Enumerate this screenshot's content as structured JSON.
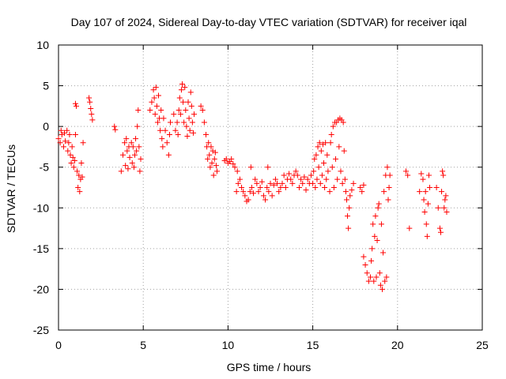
{
  "chart_data": {
    "type": "scatter",
    "title": "Day 107 of 2024, Sidereal Day-to-day VTEC variation (SDTVAR) for receiver iqal",
    "xlabel": "GPS time / hours",
    "ylabel": "SDTVAR / TECUs",
    "xlim": [
      0,
      25
    ],
    "ylim": [
      -25,
      10
    ],
    "xticks": [
      "0",
      "5",
      "10",
      "15",
      "20",
      "25"
    ],
    "yticks": [
      "10",
      "5",
      "0",
      "-5",
      "-10",
      "-15",
      "-20",
      "-25"
    ],
    "grid": true,
    "marker": "+",
    "color": "#ff0000",
    "series": [
      {
        "name": "SDTVAR",
        "points": [
          [
            0.0,
            -1.5
          ],
          [
            0.1,
            -2.0
          ],
          [
            0.15,
            -0.5
          ],
          [
            0.2,
            -1.0
          ],
          [
            0.3,
            -2.5
          ],
          [
            0.35,
            -0.8
          ],
          [
            0.4,
            -1.8
          ],
          [
            0.5,
            -0.5
          ],
          [
            0.55,
            -3.0
          ],
          [
            0.6,
            -2.0
          ],
          [
            0.65,
            -1.0
          ],
          [
            0.7,
            -3.5
          ],
          [
            0.75,
            -4.5
          ],
          [
            0.8,
            -2.5
          ],
          [
            0.85,
            -3.8
          ],
          [
            0.9,
            -5.0
          ],
          [
            0.95,
            -4.2
          ],
          [
            1.0,
            -1.0
          ],
          [
            1.0,
            2.8
          ],
          [
            1.05,
            2.5
          ],
          [
            1.1,
            -5.5
          ],
          [
            1.15,
            -7.5
          ],
          [
            1.2,
            -6.0
          ],
          [
            1.25,
            -8.0
          ],
          [
            1.3,
            -6.5
          ],
          [
            1.35,
            -4.5
          ],
          [
            1.4,
            -6.2
          ],
          [
            1.45,
            -2.0
          ],
          [
            1.8,
            3.5
          ],
          [
            1.85,
            3.0
          ],
          [
            1.9,
            2.2
          ],
          [
            1.95,
            1.5
          ],
          [
            2.0,
            0.8
          ],
          [
            3.3,
            0.0
          ],
          [
            3.35,
            -0.4
          ],
          [
            3.7,
            -5.5
          ],
          [
            3.8,
            -3.5
          ],
          [
            3.9,
            -2.0
          ],
          [
            3.95,
            -4.8
          ],
          [
            4.0,
            -1.5
          ],
          [
            4.05,
            -3.0
          ],
          [
            4.1,
            -5.2
          ],
          [
            4.15,
            -2.5
          ],
          [
            4.2,
            -3.8
          ],
          [
            4.3,
            -2.0
          ],
          [
            4.35,
            -4.5
          ],
          [
            4.4,
            -2.5
          ],
          [
            4.45,
            -5.0
          ],
          [
            4.5,
            -3.5
          ],
          [
            4.55,
            -1.5
          ],
          [
            4.6,
            -3.0
          ],
          [
            4.65,
            0.0
          ],
          [
            4.7,
            2.0
          ],
          [
            4.75,
            -2.5
          ],
          [
            4.8,
            -5.5
          ],
          [
            4.85,
            -4.0
          ],
          [
            5.4,
            2.0
          ],
          [
            5.5,
            3.0
          ],
          [
            5.6,
            4.5
          ],
          [
            5.65,
            3.5
          ],
          [
            5.7,
            1.5
          ],
          [
            5.75,
            4.8
          ],
          [
            5.8,
            2.5
          ],
          [
            5.85,
            0.5
          ],
          [
            5.9,
            3.8
          ],
          [
            5.95,
            1.0
          ],
          [
            6.0,
            -0.5
          ],
          [
            6.05,
            2.0
          ],
          [
            6.1,
            -1.5
          ],
          [
            6.15,
            -2.5
          ],
          [
            6.2,
            1.0
          ],
          [
            6.3,
            -0.5
          ],
          [
            6.4,
            -2.0
          ],
          [
            6.5,
            -3.5
          ],
          [
            6.55,
            -1.0
          ],
          [
            6.6,
            0.5
          ],
          [
            6.8,
            1.5
          ],
          [
            6.9,
            -0.5
          ],
          [
            7.0,
            0.5
          ],
          [
            7.05,
            -1.0
          ],
          [
            7.1,
            2.0
          ],
          [
            7.15,
            3.5
          ],
          [
            7.2,
            1.5
          ],
          [
            7.25,
            4.5
          ],
          [
            7.3,
            5.2
          ],
          [
            7.35,
            3.0
          ],
          [
            7.4,
            0.5
          ],
          [
            7.45,
            4.8
          ],
          [
            7.5,
            2.0
          ],
          [
            7.55,
            0.0
          ],
          [
            7.6,
            -1.2
          ],
          [
            7.65,
            3.0
          ],
          [
            7.7,
            1.0
          ],
          [
            7.75,
            -0.5
          ],
          [
            7.8,
            4.2
          ],
          [
            7.85,
            2.5
          ],
          [
            7.9,
            0.5
          ],
          [
            7.95,
            -0.8
          ],
          [
            8.0,
            1.5
          ],
          [
            8.4,
            2.5
          ],
          [
            8.5,
            2.0
          ],
          [
            8.6,
            0.5
          ],
          [
            8.7,
            -1.0
          ],
          [
            8.75,
            -2.5
          ],
          [
            8.8,
            -4.0
          ],
          [
            8.85,
            -2.0
          ],
          [
            8.9,
            -3.5
          ],
          [
            8.95,
            -5.0
          ],
          [
            9.0,
            -2.5
          ],
          [
            9.05,
            -4.5
          ],
          [
            9.1,
            -3.0
          ],
          [
            9.15,
            -6.0
          ],
          [
            9.2,
            -4.0
          ],
          [
            9.25,
            -3.2
          ],
          [
            9.3,
            -4.8
          ],
          [
            9.35,
            -5.5
          ],
          [
            9.8,
            -4.2
          ],
          [
            9.9,
            -4.0
          ],
          [
            10.0,
            -4.5
          ],
          [
            10.1,
            -4.3
          ],
          [
            10.2,
            -4.0
          ],
          [
            10.3,
            -4.6
          ],
          [
            10.4,
            -5.0
          ],
          [
            10.5,
            -8.0
          ],
          [
            10.55,
            -5.5
          ],
          [
            10.6,
            -7.0
          ],
          [
            10.7,
            -6.5
          ],
          [
            10.8,
            -7.5
          ],
          [
            10.9,
            -8.0
          ],
          [
            11.0,
            -8.5
          ],
          [
            11.1,
            -9.2
          ],
          [
            11.2,
            -9.0
          ],
          [
            11.3,
            -8.0
          ],
          [
            11.35,
            -5.0
          ],
          [
            11.4,
            -7.5
          ],
          [
            11.5,
            -8.2
          ],
          [
            11.6,
            -6.5
          ],
          [
            11.7,
            -7.0
          ],
          [
            11.8,
            -8.0
          ],
          [
            11.9,
            -7.5
          ],
          [
            12.0,
            -6.8
          ],
          [
            12.1,
            -8.5
          ],
          [
            12.2,
            -9.0
          ],
          [
            12.3,
            -7.5
          ],
          [
            12.35,
            -5.0
          ],
          [
            12.4,
            -8.0
          ],
          [
            12.5,
            -7.0
          ],
          [
            12.6,
            -8.5
          ],
          [
            12.7,
            -7.2
          ],
          [
            12.8,
            -6.5
          ],
          [
            12.9,
            -7.0
          ],
          [
            13.0,
            -8.0
          ],
          [
            13.1,
            -7.5
          ],
          [
            13.2,
            -7.0
          ],
          [
            13.3,
            -6.0
          ],
          [
            13.4,
            -7.5
          ],
          [
            13.5,
            -6.5
          ],
          [
            13.6,
            -5.8
          ],
          [
            13.7,
            -6.5
          ],
          [
            13.8,
            -7.0
          ],
          [
            13.9,
            -6.0
          ],
          [
            14.0,
            -5.5
          ],
          [
            14.1,
            -6.0
          ],
          [
            14.2,
            -7.5
          ],
          [
            14.3,
            -6.5
          ],
          [
            14.4,
            -7.0
          ],
          [
            14.5,
            -6.2
          ],
          [
            14.6,
            -7.8
          ],
          [
            14.7,
            -6.5
          ],
          [
            14.8,
            -7.0
          ],
          [
            14.9,
            -6.0
          ],
          [
            15.0,
            -7.0
          ],
          [
            15.05,
            -5.5
          ],
          [
            15.1,
            -4.0
          ],
          [
            15.15,
            -7.5
          ],
          [
            15.2,
            -3.5
          ],
          [
            15.25,
            -6.5
          ],
          [
            15.3,
            -2.5
          ],
          [
            15.35,
            -5.0
          ],
          [
            15.4,
            -2.0
          ],
          [
            15.45,
            -7.0
          ],
          [
            15.5,
            -3.0
          ],
          [
            15.55,
            -6.0
          ],
          [
            15.6,
            -2.2
          ],
          [
            15.65,
            -4.5
          ],
          [
            15.7,
            -7.5
          ],
          [
            15.75,
            -2.0
          ],
          [
            15.8,
            -6.5
          ],
          [
            15.85,
            -3.5
          ],
          [
            15.9,
            -5.5
          ],
          [
            16.0,
            -8.0
          ],
          [
            16.05,
            -2.0
          ],
          [
            16.1,
            -1.0
          ],
          [
            16.15,
            -5.0
          ],
          [
            16.2,
            0.0
          ],
          [
            16.25,
            -7.5
          ],
          [
            16.3,
            0.5
          ],
          [
            16.35,
            -4.0
          ],
          [
            16.4,
            0.5
          ],
          [
            16.45,
            -6.5
          ],
          [
            16.5,
            0.8
          ],
          [
            16.55,
            -2.5
          ],
          [
            16.6,
            1.0
          ],
          [
            16.65,
            -5.5
          ],
          [
            16.7,
            0.8
          ],
          [
            16.75,
            -7.0
          ],
          [
            16.8,
            0.5
          ],
          [
            16.85,
            -3.0
          ],
          [
            16.9,
            -6.5
          ],
          [
            16.95,
            -8.0
          ],
          [
            17.0,
            -9.0
          ],
          [
            17.05,
            -11.0
          ],
          [
            17.1,
            -12.5
          ],
          [
            17.15,
            -10.0
          ],
          [
            17.2,
            -8.5
          ],
          [
            17.3,
            -7.8
          ],
          [
            17.4,
            -7.0
          ],
          [
            17.8,
            -7.5
          ],
          [
            17.9,
            -8.0
          ],
          [
            18.0,
            -7.2
          ],
          [
            18.0,
            -16.0
          ],
          [
            18.1,
            -17.0
          ],
          [
            18.2,
            -18.0
          ],
          [
            18.3,
            -19.0
          ],
          [
            18.4,
            -18.5
          ],
          [
            18.45,
            -16.5
          ],
          [
            18.5,
            -15.0
          ],
          [
            18.55,
            -12.0
          ],
          [
            18.6,
            -19.0
          ],
          [
            18.65,
            -13.5
          ],
          [
            18.7,
            -11.0
          ],
          [
            18.75,
            -18.5
          ],
          [
            18.8,
            -14.0
          ],
          [
            18.85,
            -10.0
          ],
          [
            18.9,
            -9.5
          ],
          [
            18.95,
            -18.0
          ],
          [
            19.0,
            -19.5
          ],
          [
            19.05,
            -12.0
          ],
          [
            19.1,
            -20.0
          ],
          [
            19.15,
            -15.5
          ],
          [
            19.2,
            -8.0
          ],
          [
            19.25,
            -19.0
          ],
          [
            19.3,
            -6.0
          ],
          [
            19.35,
            -18.5
          ],
          [
            19.4,
            -5.0
          ],
          [
            19.45,
            -9.0
          ],
          [
            19.5,
            -7.5
          ],
          [
            19.55,
            -6.0
          ],
          [
            20.5,
            -5.5
          ],
          [
            20.6,
            -6.0
          ],
          [
            20.7,
            -12.5
          ],
          [
            21.3,
            -8.0
          ],
          [
            21.4,
            -5.8
          ],
          [
            21.5,
            -6.5
          ],
          [
            21.55,
            -9.0
          ],
          [
            21.6,
            -10.5
          ],
          [
            21.65,
            -8.0
          ],
          [
            21.7,
            -12.0
          ],
          [
            21.75,
            -13.5
          ],
          [
            21.8,
            -9.5
          ],
          [
            21.85,
            -6.0
          ],
          [
            21.9,
            -7.5
          ],
          [
            22.3,
            -7.5
          ],
          [
            22.4,
            -10.0
          ],
          [
            22.5,
            -12.5
          ],
          [
            22.55,
            -13.0
          ],
          [
            22.6,
            -8.0
          ],
          [
            22.65,
            -5.5
          ],
          [
            22.7,
            -6.0
          ],
          [
            22.75,
            -10.0
          ],
          [
            22.8,
            -9.0
          ],
          [
            22.85,
            -8.5
          ],
          [
            22.9,
            -10.5
          ]
        ]
      }
    ]
  }
}
